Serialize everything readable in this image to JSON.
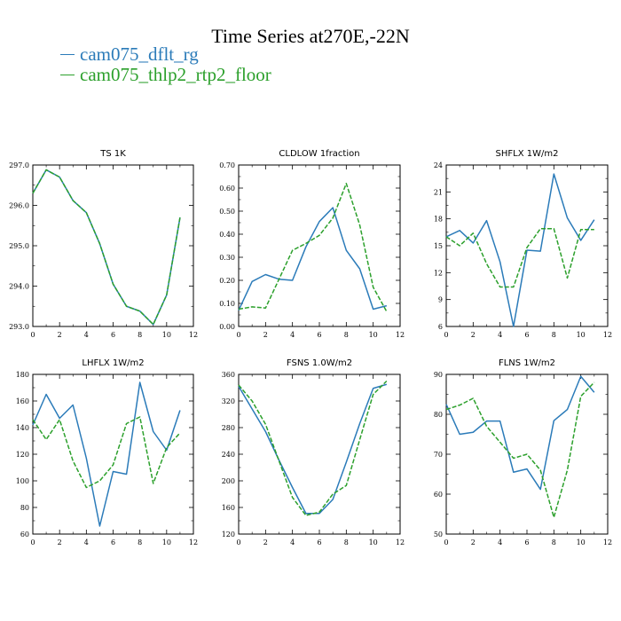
{
  "title": "Time Series at270E,-22N",
  "legend": [
    {
      "label": "cam075_dflt_rg",
      "color": "#2b7bb9"
    },
    {
      "label": "cam075_thlp2_rtp2_floor",
      "color": "#2ca02c"
    }
  ],
  "chart_data": [
    {
      "type": "line",
      "title": "TS   1K",
      "x": [
        0,
        1,
        2,
        3,
        4,
        5,
        6,
        7,
        8,
        9,
        10,
        11
      ],
      "xlim": [
        0,
        12
      ],
      "xticks": [
        0,
        2,
        4,
        6,
        8,
        10,
        12
      ],
      "ylim": [
        293.0,
        297.0
      ],
      "yticks": [
        "293.0",
        "294.0",
        "295.0",
        "296.0",
        "297.0"
      ],
      "series": [
        {
          "name": "cam075_dflt_rg",
          "values": [
            296.3,
            296.88,
            296.7,
            296.12,
            295.82,
            295.05,
            294.05,
            293.5,
            293.38,
            293.05,
            293.78,
            295.7
          ]
        },
        {
          "name": "cam075_thlp2_rtp2_floor",
          "values": [
            296.3,
            296.88,
            296.7,
            296.12,
            295.82,
            295.05,
            294.05,
            293.5,
            293.38,
            293.05,
            293.78,
            295.7
          ]
        }
      ]
    },
    {
      "type": "line",
      "title": "CLDLOW   1fraction",
      "x": [
        0,
        1,
        2,
        3,
        4,
        5,
        6,
        7,
        8,
        9,
        10,
        11
      ],
      "xlim": [
        0,
        12
      ],
      "xticks": [
        0,
        2,
        4,
        6,
        8,
        10,
        12
      ],
      "ylim": [
        0.0,
        0.7
      ],
      "yticks": [
        "0.00",
        "0.10",
        "0.20",
        "0.30",
        "0.40",
        "0.50",
        "0.60",
        "0.70"
      ],
      "series": [
        {
          "name": "cam075_dflt_rg",
          "values": [
            0.07,
            0.195,
            0.225,
            0.205,
            0.2,
            0.345,
            0.455,
            0.515,
            0.33,
            0.25,
            0.075,
            0.09
          ]
        },
        {
          "name": "cam075_thlp2_rtp2_floor",
          "values": [
            0.075,
            0.085,
            0.08,
            0.205,
            0.33,
            0.36,
            0.395,
            0.47,
            0.62,
            0.44,
            0.17,
            0.065
          ]
        }
      ]
    },
    {
      "type": "line",
      "title": "SHFLX   1W/m2",
      "x": [
        0,
        1,
        2,
        3,
        4,
        5,
        6,
        7,
        8,
        9,
        10,
        11
      ],
      "xlim": [
        0,
        12
      ],
      "xticks": [
        0,
        2,
        4,
        6,
        8,
        10,
        12
      ],
      "ylim": [
        6,
        24
      ],
      "yticks": [
        "6",
        "9",
        "12",
        "15",
        "18",
        "21",
        "24"
      ],
      "series": [
        {
          "name": "cam075_dflt_rg",
          "values": [
            16.0,
            16.7,
            15.3,
            17.8,
            13.2,
            6.0,
            14.5,
            14.4,
            23.0,
            18.1,
            15.6,
            17.9
          ]
        },
        {
          "name": "cam075_thlp2_rtp2_floor",
          "values": [
            16.0,
            15.0,
            16.4,
            13.0,
            10.4,
            10.4,
            14.8,
            16.9,
            16.9,
            11.4,
            16.8,
            16.8
          ]
        }
      ]
    },
    {
      "type": "line",
      "title": "LHFLX   1W/m2",
      "x": [
        0,
        1,
        2,
        3,
        4,
        5,
        6,
        7,
        8,
        9,
        10,
        11
      ],
      "xlim": [
        0,
        12
      ],
      "xticks": [
        0,
        2,
        4,
        6,
        8,
        10,
        12
      ],
      "ylim": [
        60,
        180
      ],
      "yticks": [
        "60",
        "80",
        "100",
        "120",
        "140",
        "160",
        "180"
      ],
      "series": [
        {
          "name": "cam075_dflt_rg",
          "values": [
            142,
            165,
            147,
            157,
            117,
            66,
            107,
            105,
            174,
            137,
            123,
            153
          ]
        },
        {
          "name": "cam075_thlp2_rtp2_floor",
          "values": [
            146,
            131,
            146,
            115,
            95,
            100,
            112,
            143,
            148,
            98,
            125,
            136
          ]
        }
      ]
    },
    {
      "type": "line",
      "title": "FSNS   1.0W/m2",
      "x": [
        0,
        1,
        2,
        3,
        4,
        5,
        6,
        7,
        8,
        9,
        10,
        11
      ],
      "xlim": [
        0,
        12
      ],
      "xticks": [
        0,
        2,
        4,
        6,
        8,
        10,
        12
      ],
      "ylim": [
        120,
        360
      ],
      "yticks": [
        "120",
        "160",
        "200",
        "240",
        "280",
        "320",
        "360"
      ],
      "series": [
        {
          "name": "cam075_dflt_rg",
          "values": [
            342,
            308,
            274,
            231,
            190,
            151,
            151,
            172,
            228,
            286,
            339,
            345
          ]
        },
        {
          "name": "cam075_thlp2_rtp2_floor",
          "values": [
            344,
            320,
            285,
            230,
            175,
            148,
            153,
            180,
            193,
            262,
            330,
            350
          ]
        }
      ]
    },
    {
      "type": "line",
      "title": "FLNS   1W/m2",
      "x": [
        0,
        1,
        2,
        3,
        4,
        5,
        6,
        7,
        8,
        9,
        10,
        11
      ],
      "xlim": [
        0,
        12
      ],
      "xticks": [
        0,
        2,
        4,
        6,
        8,
        10,
        12
      ],
      "ylim": [
        50,
        90
      ],
      "yticks": [
        "50",
        "60",
        "70",
        "80",
        "90"
      ],
      "series": [
        {
          "name": "cam075_dflt_rg",
          "values": [
            82.5,
            75,
            75.5,
            78.3,
            78.3,
            65.5,
            66.3,
            61.2,
            78.4,
            81.2,
            89.5,
            85.5
          ]
        },
        {
          "name": "cam075_thlp2_rtp2_floor",
          "values": [
            81.2,
            82.3,
            84,
            77,
            73,
            69,
            70,
            66,
            54.2,
            66,
            84.5,
            88
          ]
        }
      ]
    }
  ]
}
